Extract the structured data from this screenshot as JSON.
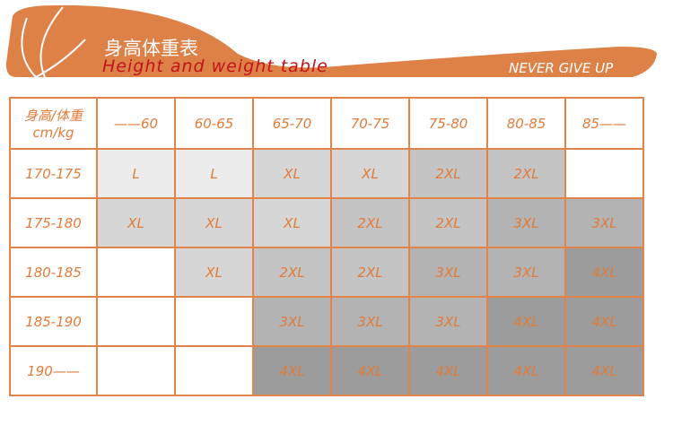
{
  "banner": {
    "title_cn": "身高体重表",
    "title_en": "Height and weight table",
    "slogan": "NEVER GIVE UP",
    "color": "#de8147"
  },
  "table": {
    "corner_line1": "身高/体重",
    "corner_line2": "cm/kg",
    "columns": [
      "——60",
      "60-65",
      "65-70",
      "70-75",
      "75-80",
      "80-85",
      "85——"
    ],
    "rows": [
      {
        "height": "170-175",
        "sizes": [
          "L",
          "L",
          "XL",
          "XL",
          "2XL",
          "2XL",
          ""
        ]
      },
      {
        "height": "175-180",
        "sizes": [
          "XL",
          "XL",
          "XL",
          "2XL",
          "2XL",
          "3XL",
          "3XL"
        ]
      },
      {
        "height": "180-185",
        "sizes": [
          "",
          "XL",
          "2XL",
          "2XL",
          "3XL",
          "3XL",
          "4XL"
        ]
      },
      {
        "height": "185-190",
        "sizes": [
          "",
          "",
          "3XL",
          "3XL",
          "3XL",
          "4XL",
          "4XL"
        ]
      },
      {
        "height": "190——",
        "sizes": [
          "",
          "",
          "4XL",
          "4XL",
          "4XL",
          "4XL",
          "4XL"
        ]
      }
    ],
    "size_colors": {
      "L": "#ececec",
      "XL": "#d6d6d6",
      "2XL": "#c4c4c4",
      "3XL": "#b3b3b3",
      "4XL": "#9c9c9c",
      "": "#ffffff"
    },
    "text_color": "#e07b39",
    "border_color": "#e0844a"
  }
}
